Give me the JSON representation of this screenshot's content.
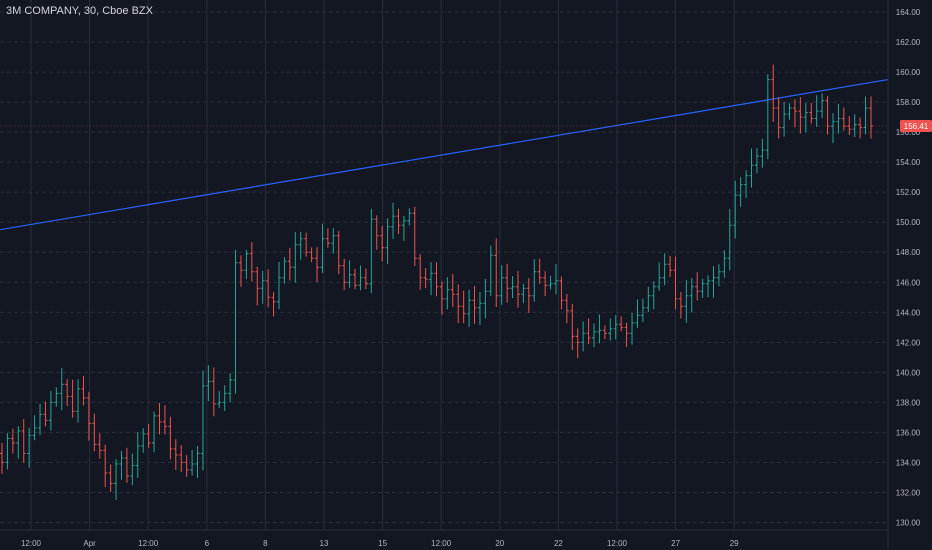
{
  "header": {
    "symbol": "3M COMPANY",
    "interval": "30",
    "exchange": "Cboe BZX",
    "separator": ", "
  },
  "last_price_label": "156.41",
  "colors": {
    "background": "#131722",
    "grid": "#2a2e39",
    "up": "#26a69a",
    "down": "#ef5350",
    "trendline": "#2962ff",
    "axis_text": "#b2b5be",
    "price_label_bg": "#ef5350"
  },
  "chart_data": {
    "type": "candlestick",
    "title": "3M COMPANY, 30, Cboe BZX",
    "ylim": [
      129.5,
      164.8
    ],
    "y_ticks": [
      130,
      132,
      134,
      136,
      138,
      140,
      142,
      144,
      146,
      148,
      150,
      152,
      154,
      156,
      158,
      160,
      162,
      164
    ],
    "y_tick_labels": [
      "130.00",
      "132.00",
      "134.00",
      "136.00",
      "138.00",
      "140.00",
      "142.00",
      "144.00",
      "146.00",
      "148.00",
      "150.00",
      "152.00",
      "154.00",
      "156.00",
      "158.00",
      "160.00",
      "162.00",
      "164.00"
    ],
    "x_tick_labels": [
      "12:00",
      "Apr",
      "12:00",
      "6",
      "8",
      "13",
      "15",
      "12:00",
      "20",
      "22",
      "12:00",
      "27",
      "29"
    ],
    "bars_per_tick": 7,
    "grid": true,
    "last_price": 156.41,
    "trendline": {
      "start_price": 149.5,
      "end_price": 159.5
    },
    "closes": [
      134.0,
      135.6,
      135.3,
      136.1,
      134.6,
      135.8,
      136.3,
      137.2,
      136.8,
      138.0,
      138.6,
      139.2,
      138.4,
      137.4,
      138.9,
      138.3,
      136.6,
      135.2,
      134.8,
      133.3,
      132.6,
      133.9,
      134.3,
      133.1,
      133.8,
      135.1,
      135.9,
      135.3,
      137.1,
      136.7,
      136.4,
      134.9,
      134.5,
      134.0,
      133.5,
      133.9,
      134.6,
      139.1,
      139.4,
      137.9,
      138.0,
      138.6,
      139.5,
      147.3,
      146.8,
      147.9,
      146.7,
      145.6,
      146.1,
      145.0,
      144.7,
      146.3,
      147.4,
      147.0,
      148.5,
      148.9,
      148.0,
      147.6,
      147.0,
      148.9,
      148.6,
      149.1,
      147.1,
      146.0,
      146.5,
      145.8,
      146.3,
      145.9,
      150.2,
      149.1,
      148.3,
      149.7,
      150.4,
      149.8,
      150.1,
      150.6,
      147.6,
      146.3,
      146.2,
      146.6,
      145.7,
      144.9,
      145.5,
      145.2,
      144.4,
      143.9,
      144.8,
      144.3,
      144.6,
      145.4,
      147.8,
      145.1,
      146.3,
      145.6,
      145.7,
      145.2,
      145.6,
      145.1,
      146.7,
      146.3,
      145.8,
      145.9,
      146.1,
      144.8,
      144.1,
      142.4,
      142.0,
      142.6,
      142.3,
      142.7,
      142.8,
      142.6,
      142.9,
      143.2,
      143.0,
      142.6,
      143.3,
      143.8,
      144.3,
      145.1,
      145.7,
      146.3,
      147.2,
      146.8,
      144.9,
      144.4,
      145.1,
      145.7,
      145.4,
      145.9,
      146.1,
      146.3,
      146.7,
      147.6,
      149.8,
      151.8,
      152.5,
      153.1,
      153.8,
      154.4,
      154.8,
      159.5,
      157.6,
      156.3,
      157.2,
      157.6,
      157.4,
      157.0,
      157.3,
      156.9,
      157.4,
      158.1,
      156.4,
      156.7,
      156.9,
      156.4,
      156.2,
      156.5,
      156.3,
      157.6,
      156.41
    ]
  }
}
